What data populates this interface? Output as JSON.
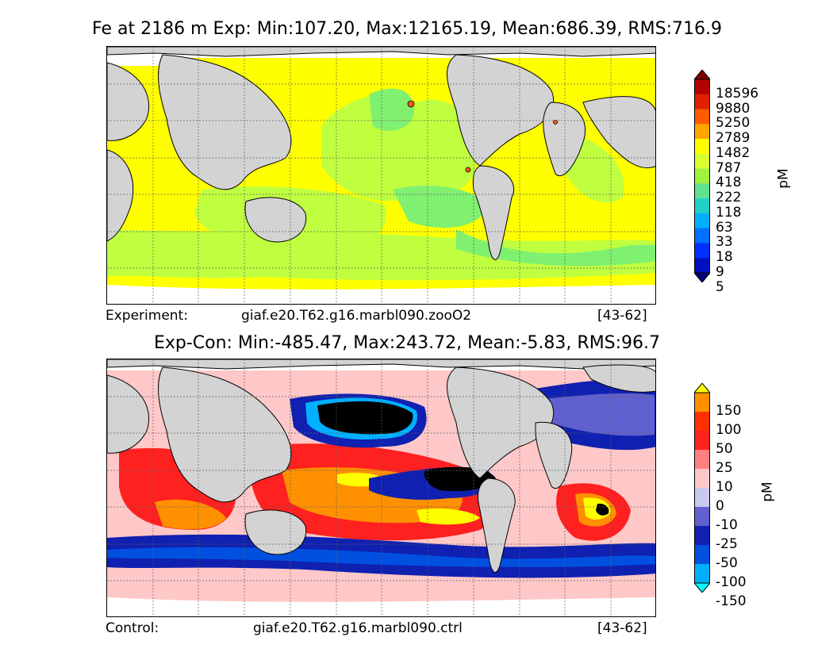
{
  "top": {
    "title": "Fe at 2186 m Exp: Min:107.20, Max:12165.19, Mean:686.39, RMS:716.9",
    "footer": {
      "label": "Experiment:",
      "case": "giaf.e20.T62.g16.marbl090.zooO2",
      "years": "[43-62]"
    },
    "colorbar": {
      "unit": "pM",
      "ticks": [
        "18596",
        "9880",
        "5250",
        "2789",
        "1482",
        "787",
        "418",
        "222",
        "118",
        "63",
        "33",
        "18",
        "9",
        "5"
      ],
      "colors": [
        "#7f0000",
        "#b30000",
        "#e02000",
        "#ff5a00",
        "#ffa500",
        "#ffff00",
        "#d8ff30",
        "#a0f040",
        "#60e090",
        "#20d0c8",
        "#00b0ff",
        "#0070ff",
        "#0030ff",
        "#0010c0",
        "#00007a"
      ]
    }
  },
  "bottom": {
    "title": "Exp-Con: Min:-485.47, Max:243.72, Mean:-5.83, RMS:96.7",
    "footer": {
      "label": "Control:",
      "case": "giaf.e20.T62.g16.marbl090.ctrl",
      "years": "[43-62]"
    },
    "colorbar": {
      "unit": "pM",
      "ticks": [
        "150",
        "100",
        "50",
        "25",
        "10",
        "0",
        "-10",
        "-25",
        "-50",
        "-100",
        "-150"
      ],
      "colors": [
        "#ffff00",
        "#ff9000",
        "#ff3000",
        "#ff2020",
        "#ff8080",
        "#ffc8c8",
        "#c8c8f0",
        "#6060d0",
        "#1020b0",
        "#0050e0",
        "#00b0ff",
        "#00ffff"
      ]
    }
  },
  "colors": {
    "land": "#d3d3d3",
    "no_data": "#ffffff",
    "low_yellow": "#ffff00",
    "mid_green": "#c0ff40",
    "high_green": "#80f070",
    "black_min": "#000000"
  }
}
